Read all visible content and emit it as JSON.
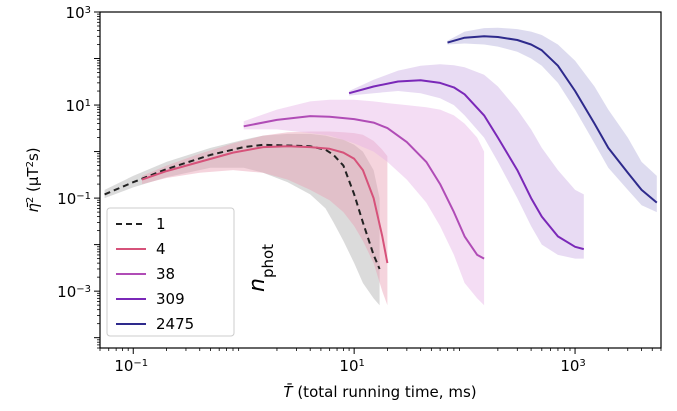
{
  "chart_data": {
    "type": "line",
    "xlabel": {
      "sym": "T̄",
      "text": " (total running time, ms)"
    },
    "ylabel": {
      "sym": "η̄",
      "sup1": "2",
      "mid": " (μT",
      "sup2": "2",
      "end": "s)"
    },
    "x_scale": "log",
    "y_scale": "log",
    "xlim": [
      0.05,
      6000
    ],
    "ylim": [
      6e-05,
      1000
    ],
    "x_ticks": [
      {
        "value": 0.1,
        "base": "10",
        "exp": "−1"
      },
      {
        "value": 10,
        "base": "10",
        "exp": "1"
      },
      {
        "value": 1000,
        "base": "10",
        "exp": "3"
      }
    ],
    "y_ticks": [
      {
        "value": 0.001,
        "base": "10",
        "exp": "−3"
      },
      {
        "value": 0.1,
        "base": "10",
        "exp": "−1"
      },
      {
        "value": 10,
        "base": "10",
        "exp": "1"
      },
      {
        "value": 1000,
        "base": "10",
        "exp": "3"
      }
    ],
    "legend": {
      "title_main": "n",
      "title_sub": "phot",
      "placement": "lower-left"
    },
    "series": [
      {
        "name": "1",
        "color": "#222222",
        "band_color": "#b0b0b0",
        "dashed": true,
        "x": [
          0.055,
          0.1,
          0.2,
          0.5,
          1.0,
          1.5,
          2.5,
          4.0,
          5.5,
          6.5,
          8.0,
          10,
          12,
          15,
          17
        ],
        "y": [
          0.12,
          0.22,
          0.42,
          0.85,
          1.25,
          1.4,
          1.35,
          1.3,
          1.1,
          0.85,
          0.5,
          0.12,
          0.03,
          0.006,
          0.003
        ],
        "lo": [
          0.1,
          0.17,
          0.28,
          0.45,
          0.45,
          0.35,
          0.22,
          0.12,
          0.06,
          0.03,
          0.012,
          0.004,
          0.0015,
          0.0007,
          0.0005
        ],
        "hi": [
          0.15,
          0.3,
          0.6,
          1.2,
          1.8,
          2.2,
          2.4,
          2.4,
          2.2,
          2.0,
          1.8,
          1.4,
          1.0,
          0.4,
          0.1
        ]
      },
      {
        "name": "4",
        "color": "#d6527a",
        "band_color": "#e8a0b4",
        "dashed": false,
        "x": [
          0.12,
          0.2,
          0.4,
          0.8,
          1.5,
          2.5,
          4,
          6,
          8,
          10,
          12,
          15,
          18,
          20
        ],
        "y": [
          0.25,
          0.38,
          0.6,
          0.95,
          1.25,
          1.3,
          1.25,
          1.15,
          0.95,
          0.7,
          0.4,
          0.1,
          0.015,
          0.004
        ],
        "lo": [
          0.2,
          0.27,
          0.35,
          0.4,
          0.35,
          0.25,
          0.15,
          0.09,
          0.05,
          0.025,
          0.012,
          0.004,
          0.001,
          0.0005
        ],
        "hi": [
          0.3,
          0.5,
          0.9,
          1.5,
          2.2,
          2.6,
          2.7,
          2.7,
          2.6,
          2.5,
          2.3,
          1.7,
          1.1,
          0.8
        ]
      },
      {
        "name": "38",
        "color": "#b04cb6",
        "band_color": "#e6b4e6",
        "dashed": false,
        "x": [
          1.0,
          2,
          4,
          6,
          10,
          15,
          20,
          30,
          45,
          60,
          80,
          100,
          130,
          150
        ],
        "y": [
          3.5,
          4.8,
          5.8,
          5.6,
          5.0,
          4.2,
          3.2,
          1.6,
          0.6,
          0.2,
          0.05,
          0.015,
          0.006,
          0.005
        ],
        "lo": [
          3.0,
          3.0,
          2.5,
          2.2,
          1.5,
          1.0,
          0.6,
          0.25,
          0.08,
          0.025,
          0.006,
          0.0015,
          0.0007,
          0.0005
        ],
        "hi": [
          4.5,
          8,
          12,
          13,
          13,
          12,
          11,
          10,
          9,
          8,
          6,
          4,
          2,
          1.0
        ]
      },
      {
        "name": "309",
        "color": "#7a28b8",
        "band_color": "#ccb0e4",
        "dashed": false,
        "x": [
          9,
          15,
          25,
          40,
          60,
          80,
          100,
          150,
          200,
          300,
          400,
          500,
          700,
          1000,
          1200
        ],
        "y": [
          18,
          25,
          32,
          34,
          30,
          24,
          17,
          6,
          2,
          0.4,
          0.1,
          0.04,
          0.015,
          0.009,
          0.008
        ],
        "lo": [
          16,
          18,
          20,
          18,
          14,
          10,
          6,
          2,
          0.6,
          0.1,
          0.025,
          0.01,
          0.006,
          0.005,
          0.005
        ],
        "hi": [
          20,
          35,
          55,
          70,
          75,
          72,
          65,
          45,
          25,
          8,
          3,
          1.2,
          0.4,
          0.15,
          0.12
        ]
      },
      {
        "name": "2475",
        "color": "#2e2a8c",
        "band_color": "#b4b0dc",
        "dashed": false,
        "x": [
          70,
          100,
          150,
          200,
          300,
          400,
          500,
          700,
          1000,
          1500,
          2000,
          3000,
          4000,
          5500
        ],
        "y": [
          220,
          280,
          300,
          290,
          250,
          200,
          150,
          70,
          20,
          4,
          1.2,
          0.35,
          0.15,
          0.08
        ],
        "lo": [
          200,
          210,
          200,
          180,
          140,
          100,
          70,
          30,
          8,
          1.5,
          0.45,
          0.15,
          0.07,
          0.05
        ],
        "hi": [
          240,
          380,
          450,
          460,
          430,
          380,
          320,
          200,
          90,
          25,
          8,
          2,
          0.6,
          0.3
        ]
      }
    ]
  }
}
